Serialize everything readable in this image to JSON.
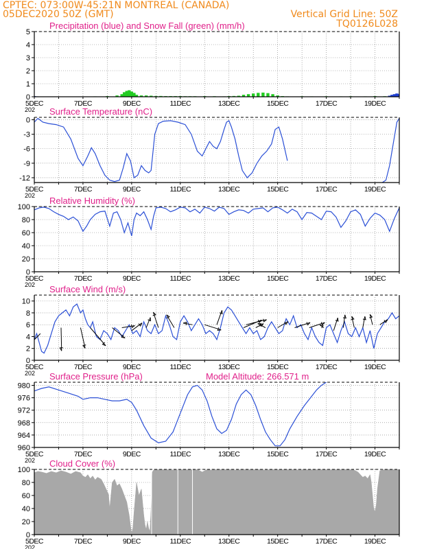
{
  "header": {
    "left_line1": "CPTEC:   073:00W-45:21N   MONTREAL (CANADA)",
    "left_line2": "05DEC2020 50Z (GMT)",
    "right_line1": "Vertical Grid Line: 50Z",
    "right_line2": "TQ0126L028",
    "color": "#f08a1c"
  },
  "colors": {
    "title": "#e0208a",
    "line": "#2a4fd6",
    "precip": "#1f3fd0",
    "snow": "#22cc22",
    "cloud": "#a8a8a8",
    "arrow": "#000000"
  },
  "x_ticks": [
    "5DEC",
    "7DEC",
    "9DEC",
    "11DEC",
    "13DEC",
    "15DEC",
    "17DEC",
    "19DEC"
  ],
  "x_days": [
    5,
    7,
    9,
    11,
    13,
    15,
    17,
    19
  ],
  "x_range": [
    5,
    20
  ],
  "year_fragment": "202",
  "chart_data": [
    {
      "type": "bar",
      "title": "Precipitation (blue) and Snow Fall (green) (mm/h)",
      "ylim": [
        0,
        5
      ],
      "yticks": [
        0,
        1,
        2,
        3,
        4,
        5
      ],
      "series": [
        {
          "name": "Precipitation",
          "x": [
            5.0,
            5.1,
            19.6,
            19.7,
            19.8,
            19.9,
            20.0
          ],
          "values": [
            0.05,
            0.03,
            0.08,
            0.15,
            0.2,
            0.25,
            0.2
          ]
        },
        {
          "name": "Snow Fall",
          "x": [
            7.5,
            8.0,
            8.4,
            8.6,
            8.7,
            8.8,
            8.9,
            9.0,
            9.1,
            9.2,
            9.4,
            9.6,
            9.8,
            10.0,
            10.2,
            10.4,
            10.6,
            10.8,
            11.0,
            11.2,
            11.4,
            11.6,
            12.0,
            12.4,
            12.8,
            13.0,
            13.2,
            13.4,
            13.6,
            13.8,
            14.0,
            14.2,
            14.4,
            14.6,
            14.8,
            15.0,
            15.2,
            15.4,
            16.0,
            16.4,
            17.0,
            17.6,
            18.0,
            18.6,
            19.0,
            19.4
          ],
          "values": [
            0.03,
            0.05,
            0.1,
            0.2,
            0.35,
            0.45,
            0.5,
            0.4,
            0.3,
            0.15,
            0.1,
            0.1,
            0.08,
            0.06,
            0.06,
            0.05,
            0.05,
            0.05,
            0.05,
            0.04,
            0.04,
            0.04,
            0.05,
            0.04,
            0.03,
            0.05,
            0.06,
            0.08,
            0.15,
            0.2,
            0.25,
            0.3,
            0.32,
            0.28,
            0.2,
            0.1,
            0.05,
            0.03,
            0.04,
            0.03,
            0.04,
            0.03,
            0.04,
            0.03,
            0.05,
            0.04
          ]
        }
      ]
    },
    {
      "type": "line",
      "title": "Surface Temperature (nC)",
      "ylim": [
        -13,
        0.5
      ],
      "yticks": [
        0,
        -3,
        -6,
        -9,
        -12
      ],
      "x": [
        5.0,
        5.15,
        5.35,
        5.6,
        5.9,
        6.2,
        6.5,
        6.8,
        7.0,
        7.2,
        7.35,
        7.5,
        7.7,
        7.9,
        8.1,
        8.3,
        8.5,
        8.65,
        8.8,
        8.95,
        9.1,
        9.25,
        9.4,
        9.55,
        9.7,
        9.8,
        9.95,
        10.1,
        10.3,
        10.6,
        10.9,
        11.2,
        11.45,
        11.7,
        11.9,
        12.05,
        12.2,
        12.35,
        12.5,
        12.65,
        12.8,
        12.9,
        13.0,
        13.1,
        13.25,
        13.4,
        13.55,
        13.75,
        13.95,
        14.15,
        14.35,
        14.55,
        14.75,
        14.9,
        15.05,
        15.2,
        15.4
      ],
      "y": [
        -0.5,
        0.3,
        -0.5,
        -0.8,
        -1.0,
        -1.5,
        -4.0,
        -8.0,
        -9.5,
        -7.5,
        -5.8,
        -7.0,
        -9.5,
        -11.5,
        -12.5,
        -12.8,
        -12.5,
        -10.0,
        -7.0,
        -8.5,
        -12.0,
        -11.5,
        -9.5,
        -10.5,
        -11.0,
        -10.5,
        -3.0,
        -0.8,
        -0.3,
        -0.2,
        -0.5,
        -1.0,
        -3.0,
        -6.5,
        -7.5,
        -6.0,
        -4.5,
        -5.5,
        -6.0,
        -4.5,
        -2.0,
        -0.5,
        -0.2,
        -1.5,
        -4.0,
        -7.5,
        -10.5,
        -12.0,
        -11.0,
        -9.0,
        -7.5,
        -6.5,
        -5.0,
        -2.0,
        -1.5,
        -4.0,
        -8.5
      ],
      "x2": [
        19.3,
        19.45,
        19.6,
        19.75,
        19.9,
        20.0
      ],
      "y2": [
        -13.0,
        -12.5,
        -9.5,
        -5.0,
        -0.5,
        0.3
      ]
    },
    {
      "type": "line",
      "title": "Relative Humidity (%)",
      "ylim": [
        0,
        100
      ],
      "yticks": [
        0,
        20,
        40,
        60,
        80,
        100
      ],
      "x": [
        5.0,
        5.2,
        5.4,
        5.6,
        5.8,
        6.0,
        6.2,
        6.4,
        6.6,
        6.8,
        7.0,
        7.15,
        7.3,
        7.5,
        7.7,
        7.9,
        8.1,
        8.25,
        8.4,
        8.55,
        8.7,
        8.85,
        9.0,
        9.1,
        9.2,
        9.35,
        9.5,
        9.65,
        9.8,
        9.9,
        10.0,
        10.2,
        10.4,
        10.6,
        10.8,
        11.0,
        11.2,
        11.4,
        11.6,
        11.8,
        12.0,
        12.2,
        12.4,
        12.6,
        12.8,
        13.0,
        13.2,
        13.4,
        13.6,
        13.8,
        14.0,
        14.2,
        14.4,
        14.6,
        14.8,
        15.0,
        15.2,
        15.4,
        15.6,
        15.8,
        16.0,
        16.2,
        16.4,
        16.6,
        16.8,
        17.0,
        17.2,
        17.4,
        17.6,
        17.8,
        18.0,
        18.2,
        18.4,
        18.6,
        18.8,
        19.0,
        19.2,
        19.4,
        19.6,
        19.8,
        20.0
      ],
      "y": [
        95,
        98,
        99,
        97,
        92,
        88,
        85,
        80,
        84,
        78,
        62,
        70,
        80,
        88,
        92,
        93,
        70,
        90,
        92,
        80,
        60,
        75,
        55,
        80,
        90,
        86,
        92,
        80,
        65,
        85,
        98,
        99,
        97,
        92,
        95,
        99,
        98,
        92,
        96,
        90,
        99,
        97,
        93,
        99,
        97,
        88,
        92,
        95,
        94,
        90,
        96,
        97,
        98,
        92,
        98,
        99,
        95,
        90,
        96,
        92,
        80,
        91,
        90,
        85,
        80,
        93,
        92,
        84,
        68,
        78,
        92,
        95,
        88,
        70,
        82,
        90,
        87,
        80,
        62,
        82,
        98
      ]
    },
    {
      "type": "line",
      "title": "Surface Wind (m/s)",
      "ylim": [
        0,
        11
      ],
      "yticks": [
        0,
        2,
        4,
        6,
        8,
        10
      ],
      "x": [
        5.0,
        5.1,
        5.2,
        5.3,
        5.4,
        5.55,
        5.7,
        5.85,
        6.0,
        6.15,
        6.3,
        6.45,
        6.6,
        6.75,
        6.9,
        7.0,
        7.1,
        7.2,
        7.3,
        7.4,
        7.55,
        7.7,
        7.85,
        8.0,
        8.15,
        8.3,
        8.45,
        8.6,
        8.75,
        8.9,
        9.05,
        9.2,
        9.35,
        9.5,
        9.65,
        9.8,
        9.95,
        10.1,
        10.25,
        10.4,
        10.55,
        10.7,
        10.85,
        11.0,
        11.15,
        11.3,
        11.45,
        11.6,
        11.75,
        11.9,
        12.05,
        12.2,
        12.35,
        12.5,
        12.65,
        12.8,
        12.95,
        13.1,
        13.25,
        13.4,
        13.55,
        13.7,
        13.85,
        14.0,
        14.15,
        14.3,
        14.45,
        14.6,
        14.75,
        14.9,
        15.05,
        15.2,
        15.35,
        15.5,
        15.65,
        15.8,
        15.95,
        16.1,
        16.25,
        16.4,
        16.55,
        16.7,
        16.85,
        17.0,
        17.15,
        17.3,
        17.45,
        17.6,
        17.75,
        17.9,
        18.05,
        18.2,
        18.35,
        18.5,
        18.65,
        18.8,
        18.95,
        19.1,
        19.25,
        19.4,
        19.55,
        19.7,
        19.85,
        20.0
      ],
      "y": [
        3.5,
        4.5,
        3.0,
        1.5,
        1.2,
        2.5,
        4.5,
        6.5,
        7.5,
        8.0,
        8.5,
        7.5,
        9.0,
        9.5,
        8.0,
        8.5,
        7.0,
        6.0,
        5.5,
        6.5,
        4.0,
        3.5,
        5.0,
        4.5,
        3.5,
        5.5,
        5.0,
        4.0,
        5.0,
        6.0,
        4.5,
        5.0,
        4.0,
        6.5,
        5.0,
        4.5,
        6.0,
        4.5,
        5.0,
        7.5,
        6.0,
        4.0,
        3.5,
        6.5,
        7.5,
        6.5,
        5.0,
        6.0,
        7.0,
        6.0,
        4.5,
        5.0,
        4.5,
        3.5,
        5.5,
        8.0,
        9.0,
        8.5,
        7.5,
        6.5,
        5.5,
        4.5,
        5.5,
        4.5,
        5.0,
        3.5,
        4.0,
        5.5,
        6.5,
        5.5,
        4.5,
        5.0,
        7.0,
        6.0,
        7.5,
        5.5,
        6.0,
        4.5,
        3.5,
        5.5,
        4.0,
        3.0,
        2.5,
        5.5,
        6.0,
        4.5,
        3.0,
        5.0,
        6.5,
        4.5,
        4.0,
        5.5,
        4.0,
        5.5,
        3.0,
        5.0,
        2.0,
        4.5,
        5.5,
        6.5,
        7.0,
        8.0,
        7.0,
        7.5
      ],
      "arrows": [
        {
          "x": 5.25,
          "y": 4.5,
          "u": -1.8,
          "v": -1.8
        },
        {
          "x": 6.1,
          "y": 5.5,
          "u": 0.1,
          "v": -4.5
        },
        {
          "x": 6.9,
          "y": 5.5,
          "u": 0.9,
          "v": -4.0
        },
        {
          "x": 7.3,
          "y": 5.5,
          "u": 3.0,
          "v": -3.5
        },
        {
          "x": 8.2,
          "y": 5.5,
          "u": 2.5,
          "v": -2.0
        },
        {
          "x": 8.6,
          "y": 5.5,
          "u": 2.5,
          "v": 0.4
        },
        {
          "x": 9.0,
          "y": 5.0,
          "u": 2.0,
          "v": 1.5
        },
        {
          "x": 9.6,
          "y": 5.5,
          "u": 0.8,
          "v": 2.0
        },
        {
          "x": 10.1,
          "y": 5.5,
          "u": -1.0,
          "v": 3.0
        },
        {
          "x": 10.75,
          "y": 5.5,
          "u": -1.5,
          "v": 2.5
        },
        {
          "x": 11.5,
          "y": 6.0,
          "u": -1.8,
          "v": 0.3
        },
        {
          "x": 12.0,
          "y": 6.0,
          "u": 3.2,
          "v": -1.0
        },
        {
          "x": 12.5,
          "y": 6.0,
          "u": 1.0,
          "v": 2.8
        },
        {
          "x": 13.6,
          "y": 5.5,
          "u": 3.5,
          "v": 1.5
        },
        {
          "x": 13.7,
          "y": 6.0,
          "u": 4.0,
          "v": 1.0
        },
        {
          "x": 14.1,
          "y": 5.5,
          "u": 1.5,
          "v": 0.8
        },
        {
          "x": 14.5,
          "y": 5.5,
          "u": -1.5,
          "v": 0.8
        },
        {
          "x": 15.0,
          "y": 5.5,
          "u": 2.0,
          "v": 1.2
        },
        {
          "x": 15.7,
          "y": 5.5,
          "u": 3.0,
          "v": 1.0
        },
        {
          "x": 16.3,
          "y": 5.5,
          "u": 3.0,
          "v": 1.0
        },
        {
          "x": 16.9,
          "y": 5.5,
          "u": -0.8,
          "v": 0.5
        },
        {
          "x": 17.3,
          "y": 5.0,
          "u": 0.8,
          "v": 2.5
        },
        {
          "x": 17.7,
          "y": 5.5,
          "u": 0.3,
          "v": 2.5
        },
        {
          "x": 18.15,
          "y": 5.5,
          "u": -0.5,
          "v": 2.2
        },
        {
          "x": 18.5,
          "y": 5.5,
          "u": 0.4,
          "v": 2.2
        },
        {
          "x": 18.9,
          "y": 6.0,
          "u": -0.5,
          "v": 2.0
        },
        {
          "x": 19.2,
          "y": 6.0,
          "u": 1.5,
          "v": 1.0
        }
      ]
    },
    {
      "type": "line",
      "title": "Surface Pressure (hPa)",
      "annotation": "Model Altitude: 266.571  m",
      "ylim": [
        960,
        981
      ],
      "yticks": [
        960,
        964,
        968,
        972,
        976,
        980
      ],
      "x": [
        5.0,
        5.3,
        5.6,
        6.0,
        6.4,
        6.8,
        7.0,
        7.3,
        7.6,
        7.9,
        8.2,
        8.5,
        8.8,
        9.0,
        9.2,
        9.5,
        9.8,
        10.1,
        10.4,
        10.7,
        11.0,
        11.3,
        11.5,
        11.7,
        11.9,
        12.1,
        12.3,
        12.5,
        12.7,
        12.9,
        13.1,
        13.3,
        13.5,
        13.7,
        13.9,
        14.1,
        14.3,
        14.5,
        14.7,
        14.9,
        15.1,
        15.3,
        15.5,
        15.8,
        16.1,
        16.4,
        16.6,
        16.8,
        17.0
      ],
      "y": [
        978.2,
        979.0,
        979.5,
        978.5,
        977.5,
        976.5,
        975.5,
        976.0,
        976.0,
        975.5,
        975.0,
        975.0,
        975.5,
        974.5,
        972.0,
        967.0,
        963.0,
        961.5,
        962.0,
        965.0,
        971.0,
        977.0,
        979.5,
        980.0,
        978.5,
        975.0,
        970.0,
        966.0,
        964.5,
        965.5,
        969.0,
        974.0,
        977.0,
        978.5,
        977.0,
        973.5,
        969.0,
        965.0,
        962.5,
        960.5,
        960.5,
        962.5,
        966.0,
        970.0,
        973.5,
        976.5,
        978.5,
        980.0,
        981.0
      ]
    },
    {
      "type": "area",
      "title": "Cloud Cover (%)",
      "ylim": [
        0,
        100
      ],
      "yticks": [
        0,
        20,
        40,
        60,
        80,
        100
      ],
      "x": [
        5.0,
        5.15,
        5.3,
        5.5,
        5.7,
        5.9,
        6.1,
        6.3,
        6.5,
        6.7,
        6.9,
        7.0,
        7.1,
        7.2,
        7.3,
        7.4,
        7.5,
        7.6,
        7.75,
        7.85,
        7.95,
        8.05,
        8.1,
        8.2,
        8.3,
        8.4,
        8.5,
        8.6,
        8.7,
        8.8,
        8.85,
        8.9,
        8.95,
        9.0,
        9.05,
        9.1,
        9.2,
        9.3,
        9.4,
        9.45,
        9.5,
        9.55,
        9.6,
        9.65,
        9.7,
        9.75,
        9.8,
        9.85,
        9.9,
        10.0,
        10.1,
        10.3,
        10.5,
        10.7,
        10.9,
        11.0,
        11.1,
        11.3,
        11.5,
        11.7,
        11.9,
        12.1,
        12.3,
        12.5,
        12.7,
        12.9,
        13.1,
        13.3,
        13.5,
        13.7,
        13.9,
        14.1,
        14.3,
        14.5,
        14.7,
        14.9,
        15.1,
        15.3,
        15.5,
        15.7,
        15.9,
        16.1,
        16.3,
        16.5,
        16.7,
        16.9,
        17.1,
        17.3,
        17.5,
        17.7,
        17.9,
        18.1,
        18.3,
        18.5,
        18.6,
        18.7,
        18.8,
        18.85,
        18.9,
        18.95,
        19.0,
        19.05,
        19.1,
        19.2,
        19.4,
        19.6,
        19.8,
        20.0
      ],
      "y": [
        95,
        97,
        96,
        94,
        97,
        95,
        98,
        96,
        93,
        97,
        95,
        90,
        88,
        92,
        86,
        90,
        84,
        88,
        85,
        78,
        70,
        62,
        40,
        80,
        85,
        75,
        78,
        70,
        60,
        50,
        40,
        30,
        15,
        2,
        10,
        35,
        80,
        60,
        70,
        50,
        30,
        15,
        8,
        20,
        10,
        5,
        40,
        96,
        99,
        100,
        100,
        100,
        100,
        99,
        100,
        100,
        100,
        100,
        100,
        100,
        96,
        100,
        99,
        100,
        100,
        100,
        100,
        99,
        100,
        100,
        100,
        100,
        100,
        99,
        100,
        100,
        100,
        100,
        100,
        100,
        99,
        100,
        100,
        100,
        100,
        100,
        99,
        100,
        100,
        100,
        100,
        100,
        96,
        88,
        90,
        86,
        92,
        80,
        60,
        40,
        35,
        45,
        70,
        98,
        100,
        100,
        100,
        100
      ]
    }
  ]
}
